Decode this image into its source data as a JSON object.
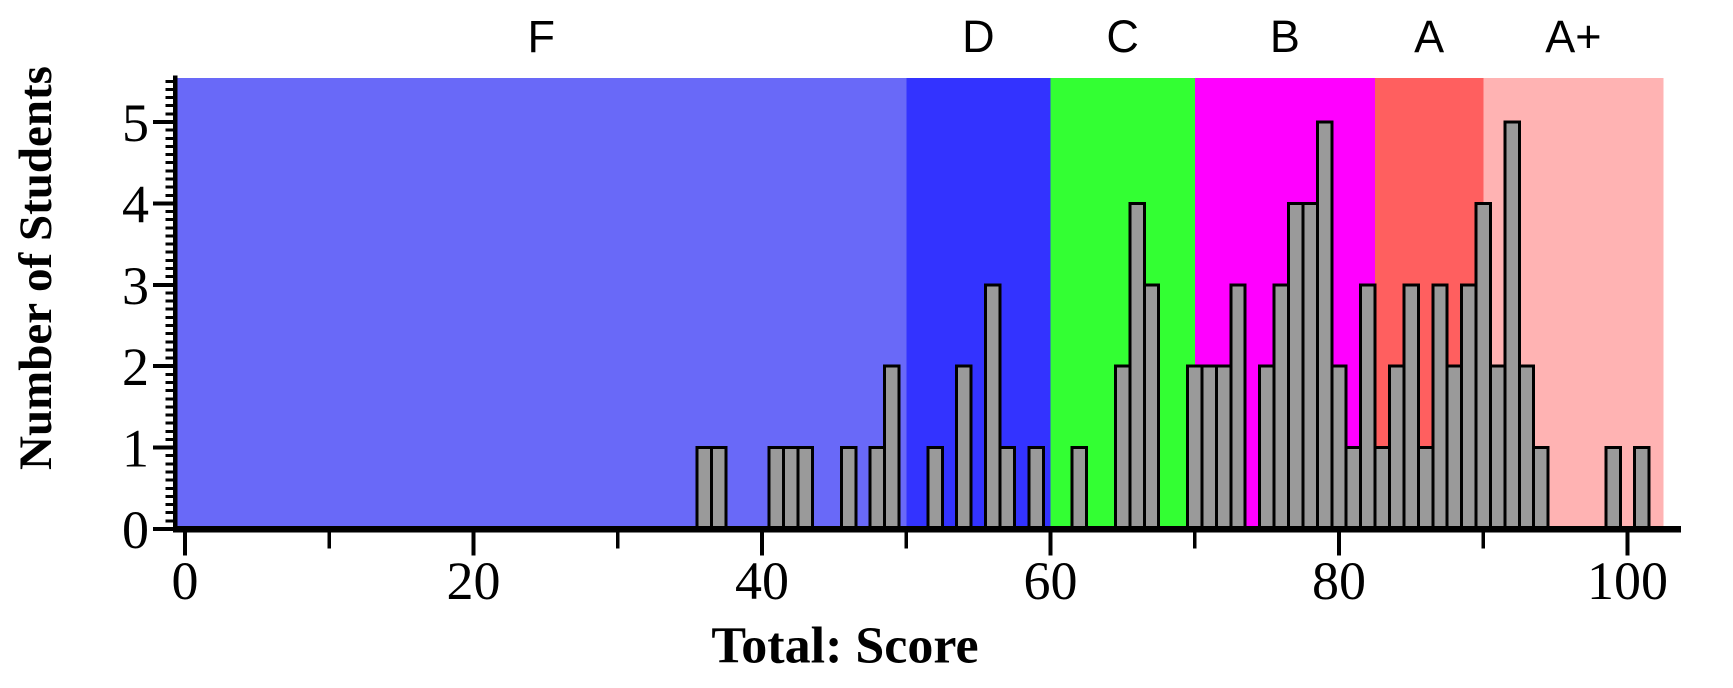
{
  "chart_data": {
    "type": "bar",
    "subtype": "histogram",
    "title": "",
    "xlabel": "Total: Score",
    "ylabel": "Number of Students",
    "xlim": [
      -0.6,
      103.7
    ],
    "ylim": [
      0,
      5.55
    ],
    "bin_width": 1,
    "x": [
      36,
      37,
      41,
      42,
      43,
      46,
      48,
      49,
      52,
      54,
      56,
      57,
      59,
      62,
      65,
      66,
      67,
      70,
      71,
      72,
      73,
      75,
      76,
      77,
      78,
      79,
      80,
      81,
      82,
      83,
      84,
      85,
      86,
      87,
      88,
      89,
      90,
      91,
      92,
      93,
      94,
      99,
      101
    ],
    "counts": [
      1,
      1,
      1,
      1,
      1,
      1,
      1,
      2,
      1,
      2,
      3,
      1,
      1,
      1,
      2,
      4,
      3,
      2,
      2,
      2,
      3,
      2,
      3,
      4,
      4,
      5,
      2,
      1,
      3,
      1,
      2,
      3,
      1,
      3,
      2,
      3,
      4,
      2,
      5,
      2,
      1,
      1,
      1
    ],
    "bar_color": "#9A9A9A",
    "bar_edge_color": "#000000",
    "axis_color": "#000000",
    "x_major_ticks": [
      0,
      20,
      40,
      60,
      80,
      100
    ],
    "x_minor_ticks": [
      10,
      30,
      50,
      70,
      90
    ],
    "y_major_ticks": [
      0,
      1,
      2,
      3,
      4,
      5
    ],
    "y_minor_tick_step": 0.1,
    "grid": false,
    "legend": "none",
    "grade_bands": [
      {
        "label": "F",
        "from": -0.6,
        "to": 50,
        "color": "#6969F8"
      },
      {
        "label": "D",
        "from": 50,
        "to": 60,
        "color": "#3333FF"
      },
      {
        "label": "C",
        "from": 60,
        "to": 70,
        "color": "#33FF33"
      },
      {
        "label": "B",
        "from": 70,
        "to": 82.5,
        "color": "#FF00FF"
      },
      {
        "label": "A",
        "from": 82.5,
        "to": 90,
        "color": "#FF5F5F"
      },
      {
        "label": "A+",
        "from": 90,
        "to": 102.5,
        "color": "#FFB3B3"
      }
    ]
  }
}
